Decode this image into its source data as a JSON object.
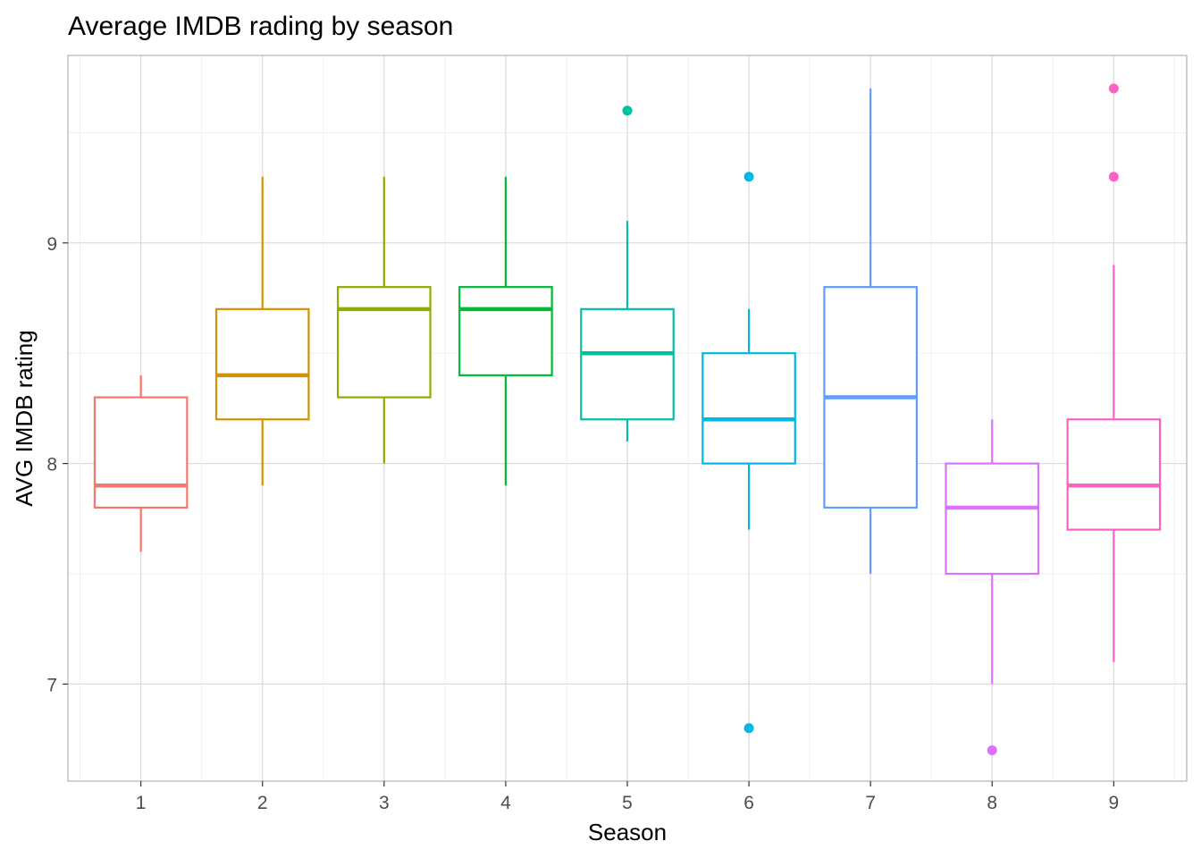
{
  "chart_data": {
    "type": "boxplot",
    "title": "Average IMDB rading by season",
    "xlabel": "Season",
    "ylabel": "AVG IMDB rating",
    "ylim": [
      6.56,
      9.85
    ],
    "yticks": [
      7,
      8,
      9
    ],
    "ytick_labels": [
      "7",
      "8",
      "9"
    ],
    "grid": true,
    "legend": "none",
    "categories": [
      "1",
      "2",
      "3",
      "4",
      "5",
      "6",
      "7",
      "8",
      "9"
    ],
    "series": [
      {
        "name": "1",
        "color": "#F8766D",
        "whisker_low": 7.6,
        "q1": 7.8,
        "median": 7.9,
        "q3": 8.3,
        "whisker_high": 8.4,
        "outliers": []
      },
      {
        "name": "2",
        "color": "#D39200",
        "whisker_low": 7.9,
        "q1": 8.2,
        "median": 8.4,
        "q3": 8.7,
        "whisker_high": 9.3,
        "outliers": []
      },
      {
        "name": "3",
        "color": "#93AA00",
        "whisker_low": 8.0,
        "q1": 8.3,
        "median": 8.7,
        "q3": 8.8,
        "whisker_high": 9.3,
        "outliers": []
      },
      {
        "name": "4",
        "color": "#00BA38",
        "whisker_low": 7.9,
        "q1": 8.4,
        "median": 8.7,
        "q3": 8.8,
        "whisker_high": 9.3,
        "outliers": []
      },
      {
        "name": "5",
        "color": "#00C19F",
        "whisker_low": 8.1,
        "q1": 8.2,
        "median": 8.5,
        "q3": 8.7,
        "whisker_high": 9.1,
        "outliers": [
          9.6
        ]
      },
      {
        "name": "6",
        "color": "#00B9E3",
        "whisker_low": 7.7,
        "q1": 8.0,
        "median": 8.2,
        "q3": 8.5,
        "whisker_high": 8.7,
        "outliers": [
          9.3,
          6.8
        ]
      },
      {
        "name": "7",
        "color": "#619CFF",
        "whisker_low": 7.5,
        "q1": 7.8,
        "median": 8.3,
        "q3": 8.8,
        "whisker_high": 9.7,
        "outliers": []
      },
      {
        "name": "8",
        "color": "#DB72FB",
        "whisker_low": 7.0,
        "q1": 7.5,
        "median": 7.8,
        "q3": 8.0,
        "whisker_high": 8.2,
        "outliers": [
          6.7
        ]
      },
      {
        "name": "9",
        "color": "#FF61C3",
        "whisker_low": 7.1,
        "q1": 7.7,
        "median": 7.9,
        "q3": 8.2,
        "whisker_high": 8.9,
        "outliers": [
          9.7,
          9.3
        ]
      }
    ]
  }
}
